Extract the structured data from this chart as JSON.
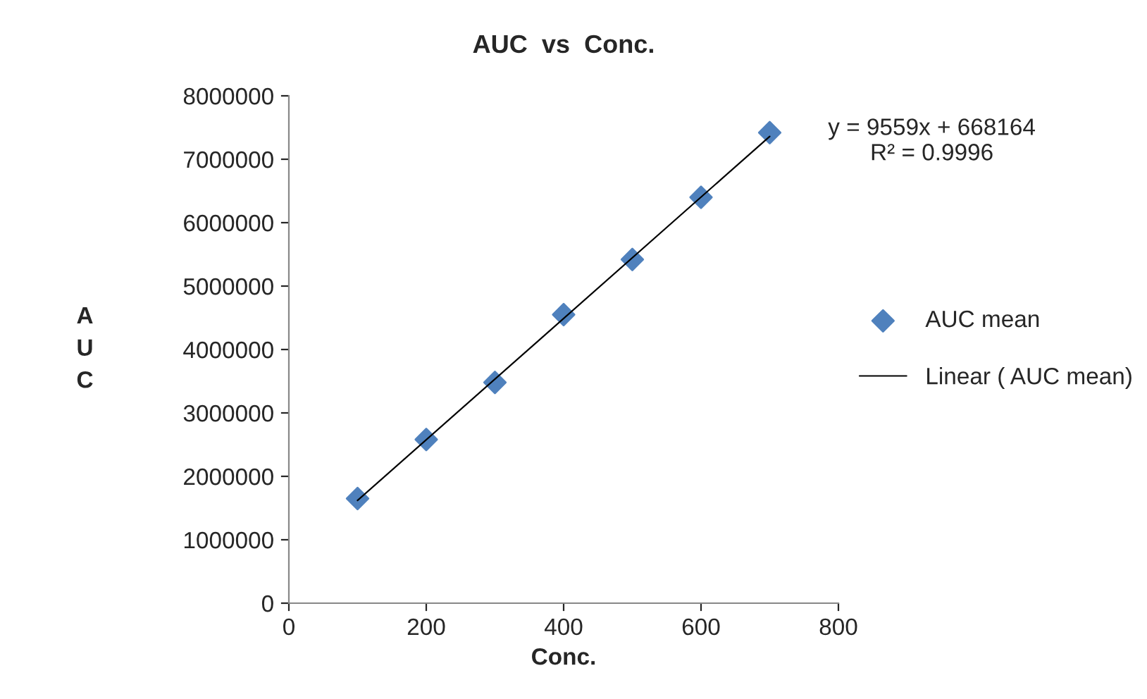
{
  "chart_data": {
    "type": "scatter",
    "title": "AUC  vs  Conc.",
    "xlabel": "Conc.",
    "ylabel": "AUC",
    "series": [
      {
        "name": "AUC mean",
        "color": "#4f81bd",
        "marker": "diamond",
        "x": [
          100,
          200,
          300,
          400,
          500,
          600,
          700
        ],
        "values": [
          1650000,
          2580000,
          3480000,
          4550000,
          5420000,
          6400000,
          7420000
        ]
      },
      {
        "name": "Linear ( AUC mean)",
        "type": "line",
        "color": "#000000",
        "line_style": "solid",
        "marker": "none",
        "x": [
          100,
          700
        ],
        "values": [
          1620000,
          7360000
        ]
      }
    ],
    "xlim": [
      0,
      800
    ],
    "xticks": [
      0,
      200,
      400,
      600,
      800
    ],
    "ylim": [
      0,
      8000000
    ],
    "yticks": [
      0,
      1000000,
      2000000,
      3000000,
      4000000,
      5000000,
      6000000,
      7000000,
      8000000
    ],
    "annotations": [
      "y = 9559x + 668164\nR² = 0.9996"
    ],
    "grid": false,
    "legend": "right"
  }
}
